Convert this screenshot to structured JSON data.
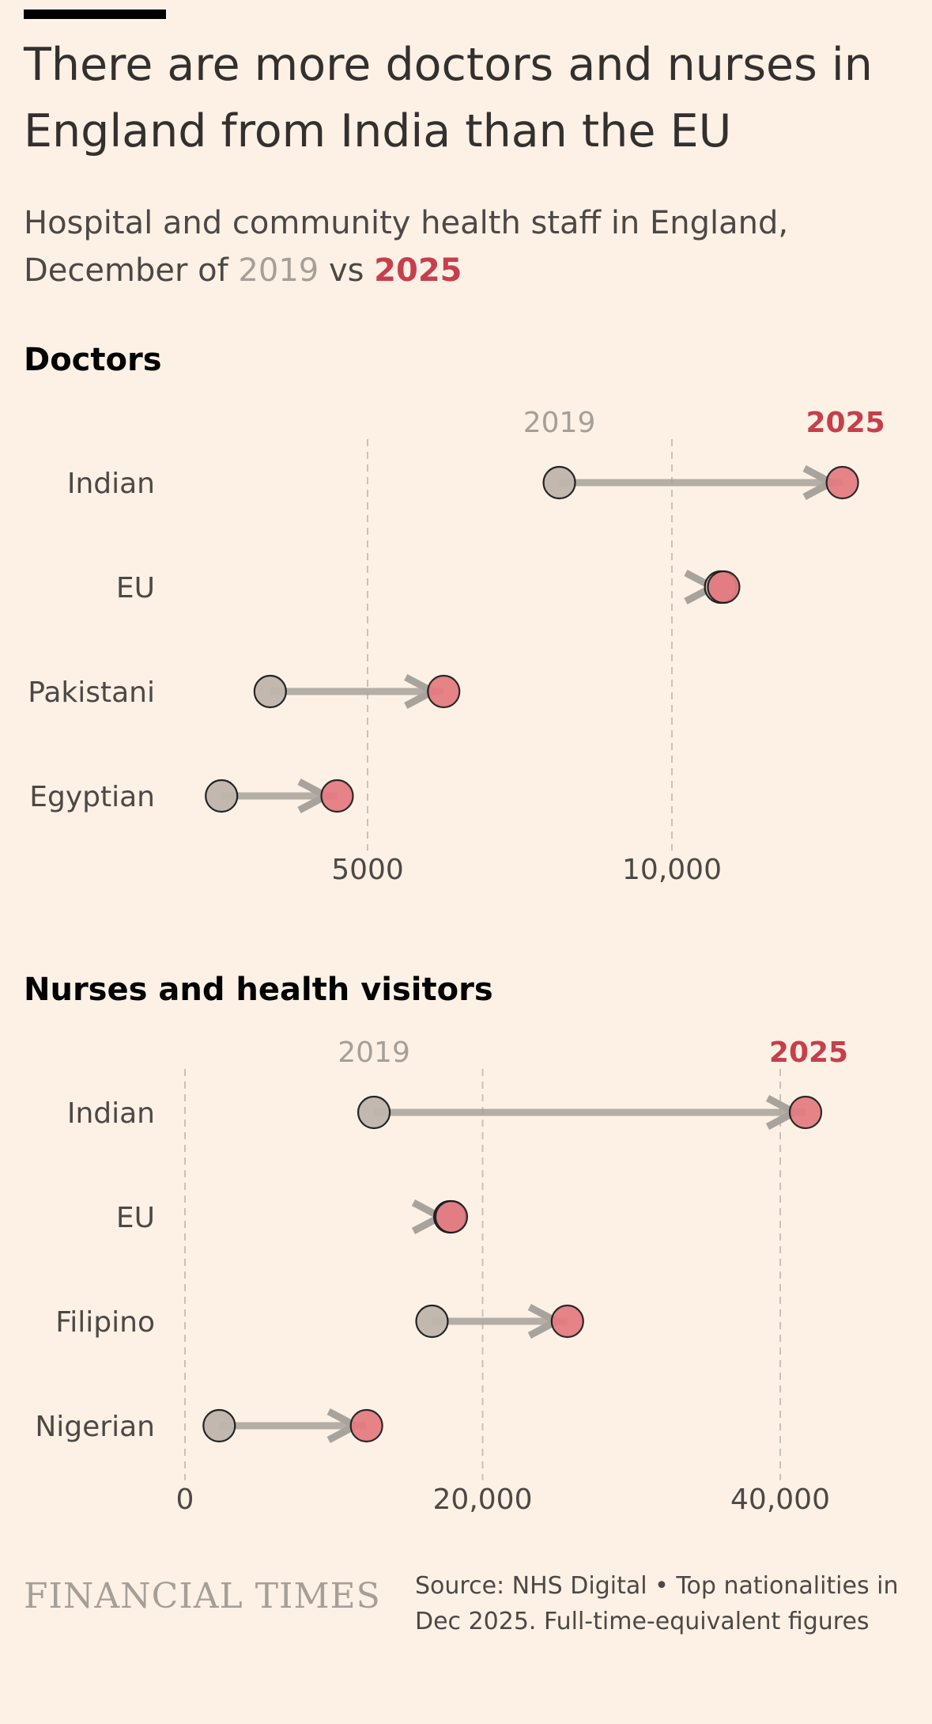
{
  "title": "There are more doctors and nurses in England from India than the EU",
  "subtitle_prefix": "Hospital and community health staff in England,",
  "subtitle_mid": "December of",
  "subtitle_year_a": "2019",
  "subtitle_vs": "vs",
  "subtitle_year_b": "2025",
  "colors": {
    "background": "#fdf1e6",
    "year_2019": "#bfb6ad",
    "year_2025": "#e57a80",
    "label_2025": "#c73f4b",
    "label_2019": "#a69f97",
    "connector": "#a9a39d"
  },
  "chart_data": [
    {
      "type": "dumbbell",
      "title": "Doctors",
      "xlim": [
        0,
        12000
      ],
      "ticks": [
        {
          "value": 5000,
          "label": "5000"
        },
        {
          "value": 10000,
          "label": "10,000"
        }
      ],
      "start_label": "2019",
      "end_label": "2025",
      "rows": [
        {
          "label": "Indian",
          "start": 8150,
          "end": 12800
        },
        {
          "label": "EU",
          "start": 10800,
          "end": 10850
        },
        {
          "label": "Pakistani",
          "start": 3400,
          "end": 6250
        },
        {
          "label": "Egyptian",
          "start": 2600,
          "end": 4500
        }
      ]
    },
    {
      "type": "dumbbell",
      "title": "Nurses and health visitors",
      "xlim": [
        0,
        45000
      ],
      "ticks": [
        {
          "value": 0,
          "label": "0"
        },
        {
          "value": 20000,
          "label": "20,000"
        },
        {
          "value": 40000,
          "label": "40,000"
        }
      ],
      "start_label": "2019",
      "end_label": "2025",
      "rows": [
        {
          "label": "Indian",
          "start": 12700,
          "end": 41700
        },
        {
          "label": "EU",
          "start": 17800,
          "end": 17900
        },
        {
          "label": "Filipino",
          "start": 16600,
          "end": 25700
        },
        {
          "label": "Nigerian",
          "start": 2300,
          "end": 12200
        }
      ]
    }
  ],
  "footer": {
    "logo": "FINANCIAL TIMES",
    "source": "Source: NHS Digital • Top nationalities in Dec 2025. Full-time-equivalent figures"
  }
}
